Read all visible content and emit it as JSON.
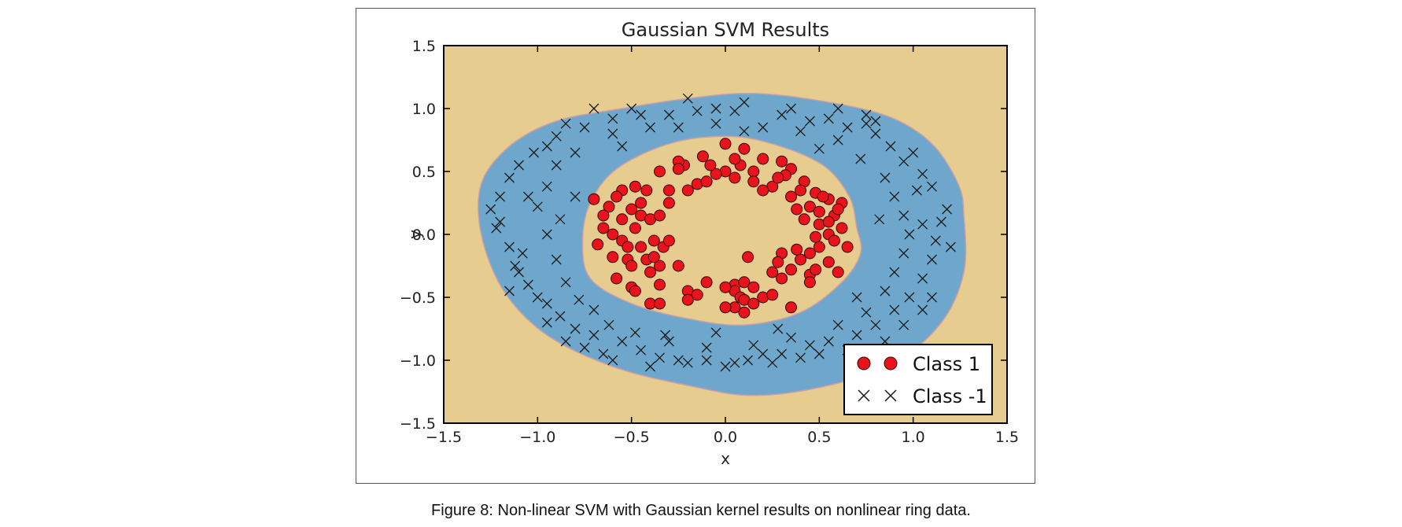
{
  "caption": "Figure 8: Non-linear SVM with Gaussian kernel results on nonlinear ring data.",
  "colors": {
    "background_region": "#e6cc8e",
    "ring_region": "#6fa7cc",
    "class1_marker": "#e8141c",
    "class_neg1_marker": "#1a1a1a"
  },
  "chart_data": {
    "type": "scatter",
    "title": "Gaussian SVM Results",
    "xlabel": "x",
    "ylabel": "y",
    "xlim": [
      -1.5,
      1.5
    ],
    "ylim": [
      -1.5,
      1.5
    ],
    "xticks": [
      "−1.5",
      "−1.0",
      "−0.5",
      "0.0",
      "0.5",
      "1.0",
      "1.5"
    ],
    "yticks": [
      "−1.5",
      "−1.0",
      "−0.5",
      "0.0",
      "0.5",
      "1.0",
      "1.5"
    ],
    "grid": false,
    "legend_position": "lower-right",
    "decision_regions": {
      "inner_region_class": "Class 1",
      "ring_region_class": "Class -1",
      "outer_region_class": "Class 1",
      "outer_boundary": [
        [
          1.27,
          0.15
        ],
        [
          1.24,
          0.4
        ],
        [
          1.1,
          0.72
        ],
        [
          0.88,
          0.93
        ],
        [
          0.55,
          1.05
        ],
        [
          0.15,
          1.12
        ],
        [
          -0.2,
          1.08
        ],
        [
          -0.55,
          1.0
        ],
        [
          -0.9,
          0.9
        ],
        [
          -1.15,
          0.7
        ],
        [
          -1.3,
          0.4
        ],
        [
          -1.3,
          0.0
        ],
        [
          -1.18,
          -0.45
        ],
        [
          -0.95,
          -0.8
        ],
        [
          -0.6,
          -1.05
        ],
        [
          -0.2,
          -1.2
        ],
        [
          0.15,
          -1.28
        ],
        [
          0.55,
          -1.2
        ],
        [
          0.9,
          -1.02
        ],
        [
          1.15,
          -0.7
        ],
        [
          1.27,
          -0.3
        ]
      ],
      "inner_boundary": [
        [
          0.7,
          0.05
        ],
        [
          0.66,
          0.3
        ],
        [
          0.52,
          0.55
        ],
        [
          0.25,
          0.72
        ],
        [
          0.0,
          0.78
        ],
        [
          -0.3,
          0.72
        ],
        [
          -0.58,
          0.52
        ],
        [
          -0.72,
          0.25
        ],
        [
          -0.76,
          -0.05
        ],
        [
          -0.72,
          -0.35
        ],
        [
          -0.5,
          -0.55
        ],
        [
          -0.2,
          -0.67
        ],
        [
          0.1,
          -0.72
        ],
        [
          0.4,
          -0.62
        ],
        [
          0.62,
          -0.38
        ],
        [
          0.72,
          -0.15
        ]
      ]
    },
    "series": [
      {
        "name": "Class 1",
        "marker": "circle",
        "points": [
          [
            0.0,
            0.72
          ],
          [
            0.1,
            0.68
          ],
          [
            -0.12,
            0.62
          ],
          [
            0.2,
            0.6
          ],
          [
            0.3,
            0.58
          ],
          [
            -0.22,
            0.55
          ],
          [
            0.35,
            0.52
          ],
          [
            0.0,
            0.5
          ],
          [
            0.05,
            0.45
          ],
          [
            0.15,
            0.5
          ],
          [
            -0.35,
            0.5
          ],
          [
            0.32,
            0.47
          ],
          [
            0.42,
            0.42
          ],
          [
            -0.48,
            0.38
          ],
          [
            0.25,
            0.38
          ],
          [
            -0.15,
            0.4
          ],
          [
            -0.1,
            0.42
          ],
          [
            -0.05,
            0.48
          ],
          [
            0.08,
            0.55
          ],
          [
            0.4,
            0.35
          ],
          [
            0.48,
            0.33
          ],
          [
            -0.42,
            0.35
          ],
          [
            -0.55,
            0.35
          ],
          [
            -0.58,
            0.3
          ],
          [
            0.55,
            0.28
          ],
          [
            0.62,
            0.25
          ],
          [
            -0.7,
            0.28
          ],
          [
            0.35,
            0.3
          ],
          [
            0.2,
            0.35
          ],
          [
            -0.3,
            0.35
          ],
          [
            -0.2,
            0.35
          ],
          [
            -0.62,
            0.22
          ],
          [
            -0.65,
            0.15
          ],
          [
            0.38,
            0.2
          ],
          [
            0.45,
            0.22
          ],
          [
            0.5,
            0.18
          ],
          [
            0.58,
            0.15
          ],
          [
            0.42,
            0.12
          ],
          [
            -0.5,
            0.2
          ],
          [
            -0.45,
            0.15
          ],
          [
            -0.4,
            0.12
          ],
          [
            -0.35,
            0.15
          ],
          [
            -0.55,
            0.12
          ],
          [
            -0.65,
            0.05
          ],
          [
            0.62,
            0.05
          ],
          [
            0.55,
            0.0
          ],
          [
            0.48,
            -0.02
          ],
          [
            0.65,
            -0.1
          ],
          [
            -0.6,
            0.0
          ],
          [
            -0.68,
            -0.08
          ],
          [
            -0.55,
            -0.05
          ],
          [
            -0.52,
            -0.1
          ],
          [
            -0.38,
            -0.05
          ],
          [
            -0.33,
            -0.1
          ],
          [
            -0.3,
            -0.05
          ],
          [
            0.3,
            -0.15
          ],
          [
            0.5,
            -0.1
          ],
          [
            0.45,
            -0.15
          ],
          [
            0.4,
            -0.2
          ],
          [
            0.55,
            -0.22
          ],
          [
            0.6,
            -0.3
          ],
          [
            -0.6,
            -0.18
          ],
          [
            -0.52,
            -0.2
          ],
          [
            -0.5,
            -0.25
          ],
          [
            -0.35,
            -0.25
          ],
          [
            -0.25,
            -0.25
          ],
          [
            -0.4,
            -0.3
          ],
          [
            0.35,
            -0.28
          ],
          [
            0.45,
            -0.32
          ],
          [
            0.3,
            -0.35
          ],
          [
            0.25,
            -0.3
          ],
          [
            -0.5,
            -0.42
          ],
          [
            -0.48,
            -0.45
          ],
          [
            -0.35,
            -0.4
          ],
          [
            -0.2,
            -0.45
          ],
          [
            0.05,
            -0.4
          ],
          [
            0.1,
            -0.38
          ],
          [
            0.05,
            -0.45
          ],
          [
            0.08,
            -0.5
          ],
          [
            0.1,
            -0.52
          ],
          [
            0.15,
            -0.55
          ],
          [
            0.2,
            -0.5
          ],
          [
            0.1,
            -0.62
          ],
          [
            0.05,
            -0.58
          ],
          [
            0.0,
            -0.58
          ],
          [
            -0.1,
            -0.38
          ],
          [
            -0.15,
            -0.48
          ],
          [
            -0.4,
            -0.55
          ],
          [
            -0.35,
            -0.55
          ],
          [
            -0.2,
            -0.52
          ],
          [
            0.0,
            -0.42
          ],
          [
            0.35,
            -0.58
          ],
          [
            0.25,
            -0.48
          ],
          [
            0.12,
            -0.18
          ],
          [
            0.15,
            -0.42
          ],
          [
            0.48,
            -0.28
          ],
          [
            -0.42,
            -0.2
          ],
          [
            -0.38,
            -0.18
          ],
          [
            0.58,
            -0.05
          ],
          [
            0.28,
            0.45
          ],
          [
            0.05,
            0.6
          ],
          [
            -0.25,
            0.58
          ],
          [
            -0.45,
            0.25
          ],
          [
            0.52,
            0.3
          ],
          [
            0.45,
            -0.38
          ],
          [
            -0.58,
            -0.35
          ],
          [
            0.38,
            -0.12
          ],
          [
            0.6,
            0.2
          ],
          [
            -0.08,
            0.55
          ],
          [
            0.15,
            0.42
          ],
          [
            -0.3,
            0.25
          ],
          [
            0.28,
            -0.22
          ],
          [
            0.5,
            0.08
          ],
          [
            -0.48,
            0.05
          ],
          [
            0.55,
            0.1
          ],
          [
            -0.45,
            -0.1
          ],
          [
            -0.25,
            0.52
          ]
        ]
      },
      {
        "name": "Class -1",
        "marker": "x",
        "points": [
          [
            -0.2,
            1.08
          ],
          [
            0.1,
            1.05
          ],
          [
            -0.5,
            1.0
          ],
          [
            -0.85,
            0.88
          ],
          [
            0.3,
            0.95
          ],
          [
            0.55,
            0.92
          ],
          [
            0.75,
            0.88
          ],
          [
            -0.3,
            0.95
          ],
          [
            -0.15,
            0.98
          ],
          [
            0.05,
            0.98
          ],
          [
            0.45,
            0.9
          ],
          [
            0.65,
            0.85
          ],
          [
            0.8,
            0.8
          ],
          [
            -0.6,
            0.92
          ],
          [
            -0.75,
            0.85
          ],
          [
            -0.9,
            0.78
          ],
          [
            -1.02,
            0.65
          ],
          [
            -1.1,
            0.55
          ],
          [
            -1.15,
            0.45
          ],
          [
            -1.2,
            0.3
          ],
          [
            -1.2,
            0.1
          ],
          [
            -1.22,
            0.05
          ],
          [
            -1.15,
            -0.1
          ],
          [
            -1.12,
            -0.25
          ],
          [
            -1.05,
            -0.4
          ],
          [
            -0.95,
            -0.55
          ],
          [
            -0.88,
            -0.65
          ],
          [
            -0.8,
            -0.75
          ],
          [
            -0.7,
            -0.8
          ],
          [
            -0.55,
            -0.85
          ],
          [
            -0.45,
            -0.92
          ],
          [
            -0.35,
            -0.98
          ],
          [
            -0.2,
            -1.02
          ],
          [
            -0.1,
            -1.0
          ],
          [
            0.05,
            -1.02
          ],
          [
            0.2,
            -0.95
          ],
          [
            0.3,
            -0.95
          ],
          [
            0.45,
            -0.88
          ],
          [
            0.55,
            -0.85
          ],
          [
            0.7,
            -0.8
          ],
          [
            0.8,
            -0.72
          ],
          [
            0.9,
            -0.6
          ],
          [
            0.98,
            -0.5
          ],
          [
            1.05,
            -0.35
          ],
          [
            1.1,
            -0.2
          ],
          [
            1.12,
            -0.05
          ],
          [
            1.15,
            0.1
          ],
          [
            1.18,
            0.2
          ],
          [
            1.1,
            0.38
          ],
          [
            1.05,
            0.48
          ],
          [
            0.95,
            0.58
          ],
          [
            0.88,
            0.7
          ],
          [
            -0.95,
            0.38
          ],
          [
            -1.0,
            0.22
          ],
          [
            -0.95,
            0.0
          ],
          [
            -0.9,
            -0.2
          ],
          [
            -0.85,
            -0.38
          ],
          [
            -0.78,
            -0.52
          ],
          [
            -0.62,
            -0.72
          ],
          [
            -0.48,
            -0.78
          ],
          [
            -0.3,
            -0.85
          ],
          [
            -0.1,
            -0.9
          ],
          [
            0.15,
            -0.88
          ],
          [
            0.35,
            -0.82
          ],
          [
            0.6,
            -0.72
          ],
          [
            0.75,
            -0.62
          ],
          [
            0.85,
            -0.45
          ],
          [
            0.9,
            -0.3
          ],
          [
            0.95,
            -0.15
          ],
          [
            0.98,
            0.0
          ],
          [
            0.95,
            0.15
          ],
          [
            0.9,
            0.3
          ],
          [
            0.85,
            0.45
          ],
          [
            0.72,
            0.6
          ],
          [
            0.6,
            0.75
          ],
          [
            0.4,
            0.82
          ],
          [
            0.2,
            0.85
          ],
          [
            -0.05,
            0.88
          ],
          [
            -0.4,
            0.85
          ],
          [
            -0.6,
            0.8
          ],
          [
            -0.8,
            0.65
          ],
          [
            -0.9,
            0.55
          ],
          [
            -1.05,
            0.3
          ],
          [
            -1.1,
            -0.3
          ],
          [
            -1.0,
            -0.5
          ],
          [
            -0.95,
            -0.7
          ],
          [
            -0.75,
            -0.9
          ],
          [
            -0.65,
            -0.95
          ],
          [
            -0.4,
            -1.05
          ],
          [
            -0.25,
            -1.0
          ],
          [
            0.0,
            -1.05
          ],
          [
            0.12,
            -1.0
          ],
          [
            0.25,
            -1.02
          ],
          [
            0.4,
            -0.98
          ],
          [
            0.5,
            -0.95
          ],
          [
            0.65,
            -0.92
          ],
          [
            0.85,
            -0.85
          ],
          [
            0.95,
            -0.72
          ],
          [
            1.05,
            -0.6
          ],
          [
            1.1,
            -0.5
          ],
          [
            1.0,
            0.65
          ],
          [
            0.8,
            0.9
          ],
          [
            0.35,
            1.0
          ],
          [
            -0.05,
            1.0
          ],
          [
            -0.7,
            1.0
          ],
          [
            -0.95,
            0.7
          ],
          [
            -1.15,
            -0.45
          ],
          [
            -0.85,
            -0.85
          ],
          [
            1.2,
            -0.1
          ],
          [
            0.75,
            0.95
          ],
          [
            -0.25,
            0.85
          ],
          [
            0.1,
            0.82
          ],
          [
            -0.55,
            0.7
          ],
          [
            0.5,
            0.68
          ],
          [
            -0.8,
            0.3
          ],
          [
            0.7,
            -0.5
          ],
          [
            -0.7,
            -0.6
          ],
          [
            0.82,
            0.12
          ],
          [
            -0.88,
            0.12
          ],
          [
            -0.05,
            -0.78
          ],
          [
            0.28,
            -0.75
          ],
          [
            -0.32,
            -0.8
          ],
          [
            1.02,
            0.35
          ],
          [
            -1.08,
            -0.15
          ],
          [
            0.6,
            1.0
          ],
          [
            -0.45,
            0.95
          ],
          [
            0.92,
            -0.92
          ],
          [
            -0.6,
            -1.0
          ],
          [
            1.05,
            0.08
          ],
          [
            -1.25,
            0.2
          ]
        ]
      }
    ]
  }
}
